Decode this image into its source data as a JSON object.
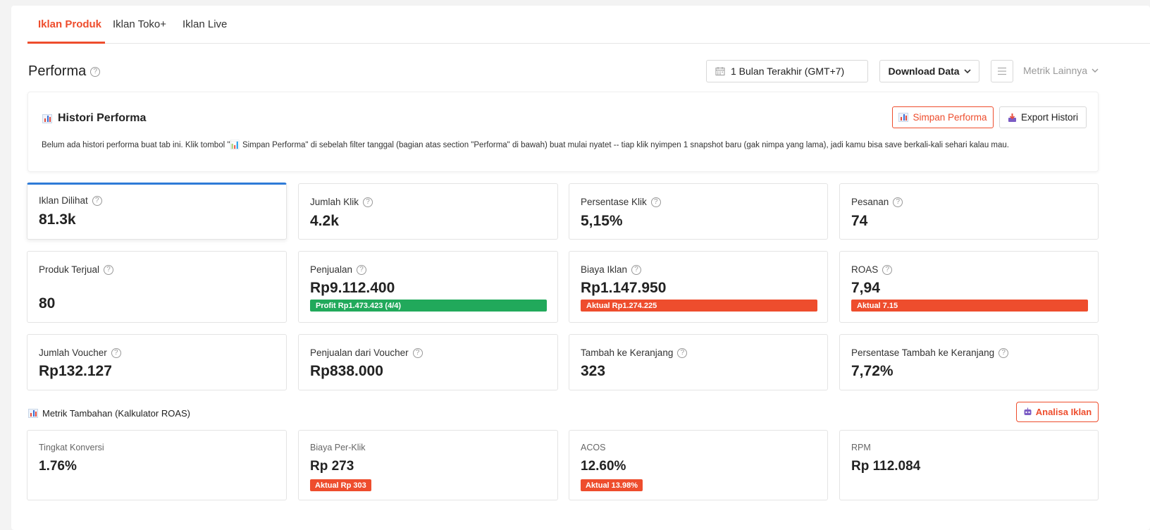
{
  "tabs": [
    {
      "label": "Iklan Produk",
      "active": true
    },
    {
      "label": "Iklan Toko+",
      "active": false
    },
    {
      "label": "Iklan Live",
      "active": false
    }
  ],
  "performa": {
    "title": "Performa",
    "date_filter": "1 Bulan Terakhir (GMT+7)",
    "download_label": "Download Data",
    "metrik_label": "Metrik Lainnya"
  },
  "histori": {
    "title": "Histori Performa",
    "description": "Belum ada histori performa buat tab ini. Klik tombol \"📊 Simpan Performa\" di sebelah filter tanggal (bagian atas section \"Performa\" di bawah) buat mulai nyatet -- tiap klik nyimpen 1 snapshot baru (gak nimpa yang lama), jadi kamu bisa save berkali-kali sehari kalau mau.",
    "simpan_label": "Simpan Performa",
    "export_label": "Export Histori"
  },
  "metrics": [
    {
      "label": "Iklan Dilihat",
      "value": "81.3k"
    },
    {
      "label": "Jumlah Klik",
      "value": "4.2k"
    },
    {
      "label": "Persentase Klik",
      "value": "5,15%"
    },
    {
      "label": "Pesanan",
      "value": "74"
    },
    {
      "label": "Produk Terjual",
      "value": "80"
    },
    {
      "label": "Penjualan",
      "value": "Rp9.112.400",
      "bar": "Profit Rp1.473.423 (4/4)"
    },
    {
      "label": "Biaya Iklan",
      "value": "Rp1.147.950",
      "bar": "Aktual Rp1.274.225"
    },
    {
      "label": "ROAS",
      "value": "7,94",
      "bar": "Aktual 7.15"
    },
    {
      "label": "Jumlah Voucher",
      "value": "Rp132.127"
    },
    {
      "label": "Penjualan dari Voucher",
      "value": "Rp838.000"
    },
    {
      "label": "Tambah ke Keranjang",
      "value": "323"
    },
    {
      "label": "Persentase Tambah ke Keranjang",
      "value": "7,72%"
    }
  ],
  "extra": {
    "title": "Metrik Tambahan (Kalkulator ROAS)",
    "analisa_label": "Analisa Iklan",
    "cards": [
      {
        "label": "Tingkat Konversi",
        "value": "1.76%"
      },
      {
        "label": "Biaya Per-Klik",
        "value": "Rp 273",
        "badge": "Aktual Rp 303"
      },
      {
        "label": "ACOS",
        "value": "12.60%",
        "badge": "Aktual 13.98%"
      },
      {
        "label": "RPM",
        "value": "Rp 112.084"
      }
    ]
  },
  "colors": {
    "accent": "#ee4d2d",
    "selected": "#2f7bd8",
    "profit": "#21a95b"
  }
}
